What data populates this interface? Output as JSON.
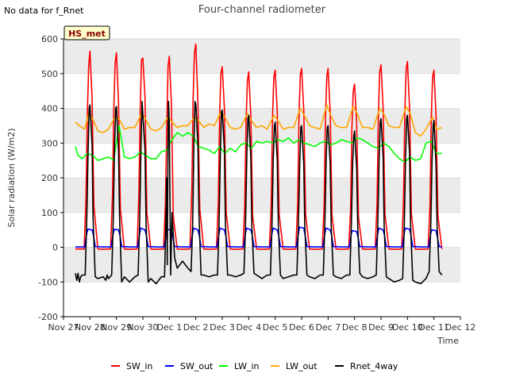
{
  "note": "No data for f_Rnet",
  "badge": "HS_met",
  "colors": {
    "SW_in": "#ff0000",
    "SW_out": "#0000ff",
    "LW_in": "#00ff00",
    "LW_out": "#ffa500",
    "Rnet_4way": "#000000",
    "band": "#ebebeb",
    "badge_fill": "#ffffcc",
    "badge_text": "#8b0000"
  },
  "chart_data": {
    "type": "line",
    "title": "Four-channel radiometer",
    "xlabel": "Time",
    "ylabel": "Solar radiation (W/m2)",
    "ylim": [
      -200,
      600
    ],
    "yticks": [
      -200,
      -100,
      0,
      100,
      200,
      300,
      400,
      500,
      600
    ],
    "xticks": [
      "Nov 27",
      "Nov 28",
      "Nov 29",
      "Nov 30",
      "Dec 1",
      "Dec 2",
      "Dec 3",
      "Dec 4",
      "Dec 5",
      "Dec 6",
      "Dec 7",
      "Dec 8",
      "Dec 9",
      "Dec 10",
      "Dec 11",
      "Dec 12"
    ],
    "xlim_days": [
      0,
      15
    ],
    "grid": "horizontal",
    "legend_position": "bottom",
    "series": [
      {
        "name": "SW_in",
        "color": "#ff0000",
        "x": [
          0.45,
          0.78,
          0.85,
          0.9,
          0.95,
          1.0,
          1.08,
          1.15,
          1.3,
          1.5,
          1.78,
          1.85,
          1.9,
          1.95,
          2.0,
          2.08,
          2.15,
          2.3,
          2.5,
          2.78,
          2.85,
          2.9,
          2.95,
          3.0,
          3.08,
          3.15,
          3.3,
          3.5,
          3.78,
          3.85,
          3.9,
          3.95,
          4.0,
          4.08,
          4.15,
          4.3,
          4.5,
          4.78,
          4.85,
          4.9,
          4.95,
          5.0,
          5.08,
          5.15,
          5.3,
          5.5,
          5.78,
          5.85,
          5.9,
          5.95,
          6.0,
          6.08,
          6.15,
          6.3,
          6.5,
          6.78,
          6.85,
          6.9,
          6.95,
          7.0,
          7.08,
          7.15,
          7.3,
          7.5,
          7.78,
          7.85,
          7.9,
          7.95,
          8.0,
          8.08,
          8.15,
          8.3,
          8.5,
          8.78,
          8.85,
          8.9,
          8.95,
          9.0,
          9.08,
          9.15,
          9.3,
          9.5,
          9.78,
          9.85,
          9.9,
          9.95,
          10.0,
          10.08,
          10.15,
          10.3,
          10.5,
          10.78,
          10.85,
          10.9,
          10.95,
          11.0,
          11.08,
          11.15,
          11.3,
          11.5,
          11.78,
          11.85,
          11.9,
          11.95,
          12.0,
          12.08,
          12.15,
          12.3,
          12.5,
          12.78,
          12.85,
          12.9,
          12.95,
          13.0,
          13.08,
          13.15,
          13.3,
          13.5,
          13.78,
          13.85,
          13.9,
          13.95,
          14.0,
          14.08,
          14.15,
          14.3
        ],
        "y": [
          -5,
          -5,
          140,
          380,
          520,
          565,
          430,
          120,
          -5,
          -6,
          -5,
          150,
          390,
          530,
          560,
          420,
          110,
          -5,
          -6,
          -5,
          160,
          400,
          540,
          545,
          430,
          100,
          -5,
          -6,
          -5,
          120,
          330,
          520,
          550,
          410,
          90,
          -5,
          -6,
          -5,
          170,
          430,
          560,
          585,
          420,
          110,
          -5,
          -6,
          -5,
          130,
          380,
          500,
          520,
          400,
          100,
          -5,
          -6,
          -5,
          120,
          360,
          480,
          505,
          380,
          90,
          -5,
          -6,
          -5,
          120,
          370,
          490,
          510,
          390,
          95,
          -5,
          -6,
          -5,
          125,
          375,
          495,
          515,
          395,
          95,
          -5,
          -6,
          -5,
          120,
          370,
          490,
          515,
          390,
          90,
          -5,
          -6,
          -5,
          110,
          340,
          450,
          470,
          360,
          85,
          -5,
          -6,
          -5,
          125,
          380,
          505,
          525,
          400,
          95,
          -5,
          -6,
          -5,
          130,
          385,
          515,
          535,
          400,
          95,
          -5,
          -6,
          -5,
          120,
          370,
          490,
          510,
          380,
          90,
          -5
        ]
      },
      {
        "name": "SW_out",
        "color": "#0000ff",
        "x": [
          0.45,
          0.8,
          0.88,
          0.92,
          1.08,
          1.13,
          1.2,
          1.5,
          1.8,
          1.88,
          1.92,
          2.08,
          2.13,
          2.2,
          2.5,
          2.8,
          2.88,
          2.92,
          3.08,
          3.13,
          3.2,
          3.5,
          3.8,
          3.88,
          3.92,
          4.08,
          4.13,
          4.2,
          4.5,
          4.8,
          4.88,
          4.92,
          5.08,
          5.13,
          5.2,
          5.5,
          5.8,
          5.88,
          5.92,
          6.08,
          6.13,
          6.2,
          6.5,
          6.8,
          6.88,
          6.92,
          7.08,
          7.13,
          7.2,
          7.5,
          7.8,
          7.88,
          7.92,
          8.08,
          8.13,
          8.2,
          8.5,
          8.8,
          8.88,
          8.92,
          9.08,
          9.13,
          9.2,
          9.5,
          9.8,
          9.88,
          9.92,
          10.08,
          10.13,
          10.2,
          10.5,
          10.8,
          10.88,
          10.92,
          11.08,
          11.13,
          11.2,
          11.5,
          11.8,
          11.88,
          11.92,
          12.08,
          12.13,
          12.2,
          12.5,
          12.8,
          12.88,
          12.92,
          13.08,
          13.13,
          13.2,
          13.5,
          13.8,
          13.88,
          13.92,
          14.08,
          14.13,
          14.2,
          14.3
        ],
        "y": [
          1,
          1,
          40,
          52,
          50,
          35,
          2,
          1,
          1,
          40,
          52,
          50,
          35,
          2,
          1,
          1,
          40,
          55,
          50,
          35,
          2,
          1,
          1,
          35,
          52,
          48,
          30,
          2,
          1,
          1,
          40,
          55,
          50,
          35,
          2,
          1,
          1,
          40,
          55,
          50,
          35,
          2,
          1,
          1,
          40,
          55,
          50,
          35,
          2,
          1,
          1,
          40,
          55,
          50,
          35,
          2,
          1,
          1,
          40,
          58,
          55,
          35,
          2,
          1,
          1,
          40,
          55,
          50,
          35,
          2,
          1,
          1,
          40,
          48,
          45,
          30,
          2,
          1,
          1,
          40,
          55,
          50,
          35,
          2,
          1,
          1,
          40,
          55,
          52,
          35,
          2,
          1,
          1,
          40,
          50,
          48,
          30,
          2,
          1
        ]
      },
      {
        "name": "LW_in",
        "color": "#00ff00",
        "x": [
          0.45,
          0.55,
          0.7,
          0.9,
          1.1,
          1.3,
          1.5,
          1.7,
          1.9,
          2.1,
          2.3,
          2.5,
          2.7,
          2.9,
          3.1,
          3.3,
          3.5,
          3.7,
          3.9,
          4.1,
          4.3,
          4.5,
          4.7,
          4.9,
          5.1,
          5.3,
          5.5,
          5.7,
          5.9,
          6.1,
          6.3,
          6.5,
          6.7,
          6.9,
          7.1,
          7.3,
          7.5,
          7.7,
          7.9,
          8.1,
          8.3,
          8.5,
          8.7,
          8.9,
          9.1,
          9.3,
          9.5,
          9.7,
          9.9,
          10.1,
          10.3,
          10.5,
          10.7,
          10.9,
          11.1,
          11.3,
          11.5,
          11.7,
          11.9,
          12.1,
          12.3,
          12.5,
          12.7,
          12.9,
          13.1,
          13.3,
          13.5,
          13.7,
          13.9,
          14.1,
          14.3
        ],
        "y": [
          290,
          265,
          255,
          270,
          265,
          250,
          255,
          260,
          250,
          350,
          260,
          255,
          260,
          275,
          265,
          255,
          255,
          275,
          280,
          310,
          330,
          320,
          330,
          320,
          290,
          285,
          280,
          270,
          290,
          270,
          285,
          275,
          295,
          300,
          285,
          305,
          300,
          305,
          300,
          310,
          305,
          315,
          300,
          310,
          300,
          295,
          290,
          300,
          305,
          295,
          300,
          310,
          305,
          300,
          315,
          310,
          300,
          290,
          285,
          300,
          290,
          270,
          255,
          245,
          260,
          250,
          255,
          300,
          305,
          270,
          270
        ]
      },
      {
        "name": "LW_out",
        "color": "#ffa500",
        "x": [
          0.45,
          0.6,
          0.8,
          0.95,
          1.1,
          1.3,
          1.5,
          1.7,
          1.95,
          2.1,
          2.3,
          2.5,
          2.7,
          2.95,
          3.1,
          3.3,
          3.5,
          3.7,
          3.95,
          4.1,
          4.3,
          4.5,
          4.7,
          4.95,
          5.1,
          5.3,
          5.5,
          5.7,
          5.95,
          6.1,
          6.3,
          6.5,
          6.7,
          6.95,
          7.1,
          7.3,
          7.5,
          7.7,
          7.95,
          8.1,
          8.3,
          8.5,
          8.7,
          8.95,
          9.1,
          9.3,
          9.5,
          9.7,
          9.95,
          10.1,
          10.3,
          10.5,
          10.7,
          10.95,
          11.1,
          11.3,
          11.5,
          11.7,
          11.95,
          12.1,
          12.3,
          12.5,
          12.7,
          12.95,
          13.1,
          13.3,
          13.5,
          13.7,
          13.95,
          14.1,
          14.3
        ],
        "y": [
          360,
          350,
          340,
          385,
          370,
          335,
          330,
          340,
          375,
          370,
          340,
          345,
          345,
          385,
          370,
          340,
          335,
          345,
          375,
          360,
          345,
          350,
          350,
          375,
          365,
          345,
          355,
          350,
          390,
          375,
          345,
          340,
          345,
          385,
          365,
          345,
          350,
          340,
          380,
          365,
          340,
          345,
          345,
          400,
          380,
          350,
          345,
          340,
          410,
          380,
          350,
          345,
          345,
          405,
          385,
          345,
          345,
          340,
          400,
          385,
          350,
          345,
          345,
          405,
          385,
          330,
          320,
          340,
          375,
          340,
          345
        ]
      },
      {
        "name": "Rnet_4way",
        "color": "#000000",
        "x": [
          0.45,
          0.5,
          0.55,
          0.6,
          0.65,
          0.7,
          0.82,
          0.88,
          0.93,
          0.97,
          1.0,
          1.08,
          1.12,
          1.2,
          1.3,
          1.5,
          1.6,
          1.65,
          1.7,
          1.82,
          1.88,
          1.93,
          1.97,
          2.0,
          2.08,
          2.12,
          2.2,
          2.3,
          2.5,
          2.7,
          2.82,
          2.88,
          2.93,
          2.97,
          3.0,
          3.08,
          3.12,
          3.2,
          3.3,
          3.5,
          3.7,
          3.82,
          3.88,
          3.9,
          3.92,
          3.95,
          3.97,
          4.0,
          4.05,
          4.1,
          4.2,
          4.3,
          4.5,
          4.7,
          4.82,
          4.88,
          4.93,
          4.97,
          5.0,
          5.08,
          5.12,
          5.2,
          5.3,
          5.5,
          5.7,
          5.82,
          5.88,
          5.93,
          5.97,
          6.0,
          6.08,
          6.12,
          6.2,
          6.3,
          6.5,
          6.7,
          6.82,
          6.88,
          6.93,
          6.97,
          7.0,
          7.08,
          7.12,
          7.2,
          7.3,
          7.5,
          7.7,
          7.82,
          7.88,
          7.93,
          7.97,
          8.0,
          8.08,
          8.12,
          8.2,
          8.3,
          8.5,
          8.7,
          8.82,
          8.88,
          8.93,
          8.97,
          9.0,
          9.08,
          9.12,
          9.2,
          9.3,
          9.5,
          9.7,
          9.82,
          9.88,
          9.93,
          9.97,
          10.0,
          10.08,
          10.12,
          10.2,
          10.3,
          10.5,
          10.7,
          10.82,
          10.88,
          10.93,
          10.97,
          11.0,
          11.08,
          11.12,
          11.2,
          11.3,
          11.5,
          11.7,
          11.82,
          11.88,
          11.93,
          11.97,
          12.0,
          12.08,
          12.12,
          12.2,
          12.3,
          12.5,
          12.7,
          12.82,
          12.88,
          12.93,
          12.97,
          13.0,
          13.08,
          13.12,
          13.2,
          13.3,
          13.5,
          13.7,
          13.82,
          13.88,
          13.93,
          13.97,
          14.0,
          14.08,
          14.12,
          14.2,
          14.3
        ],
        "y": [
          -75,
          -95,
          -75,
          -100,
          -85,
          -80,
          -80,
          80,
          280,
          400,
          410,
          300,
          80,
          -85,
          -90,
          -85,
          -95,
          -80,
          -90,
          -80,
          80,
          290,
          400,
          405,
          280,
          80,
          -100,
          -85,
          -100,
          -85,
          -80,
          80,
          300,
          420,
          380,
          280,
          70,
          -100,
          -90,
          -105,
          -85,
          -85,
          100,
          200,
          -50,
          300,
          420,
          350,
          -80,
          100,
          -30,
          -60,
          -40,
          -60,
          -70,
          60,
          300,
          420,
          410,
          300,
          90,
          -80,
          -80,
          -85,
          -80,
          -80,
          70,
          280,
          390,
          395,
          280,
          70,
          -80,
          -80,
          -85,
          -80,
          -75,
          60,
          270,
          370,
          380,
          260,
          60,
          -75,
          -80,
          -90,
          -80,
          -80,
          70,
          260,
          350,
          360,
          250,
          60,
          -80,
          -90,
          -85,
          -80,
          -80,
          70,
          250,
          345,
          350,
          240,
          60,
          -80,
          -85,
          -90,
          -80,
          -80,
          70,
          260,
          345,
          350,
          240,
          60,
          -80,
          -85,
          -90,
          -80,
          -80,
          70,
          240,
          320,
          335,
          230,
          60,
          -75,
          -85,
          -90,
          -85,
          -80,
          70,
          260,
          360,
          370,
          260,
          60,
          -85,
          -90,
          -100,
          -95,
          -90,
          60,
          260,
          370,
          380,
          270,
          60,
          -95,
          -100,
          -105,
          -90,
          -70,
          60,
          250,
          350,
          365,
          240,
          60,
          -70,
          -80
        ]
      }
    ]
  }
}
